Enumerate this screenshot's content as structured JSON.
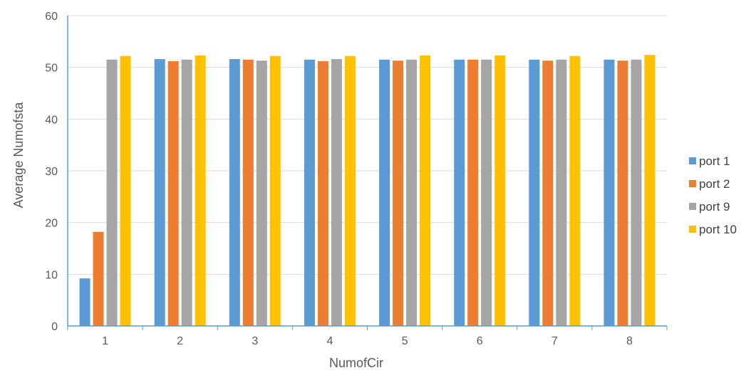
{
  "chart_data": {
    "type": "bar",
    "title": "",
    "xlabel": "NumofCir",
    "ylabel": "Average Numofsta",
    "ylim": [
      0,
      60
    ],
    "yticks": [
      0,
      10,
      20,
      30,
      40,
      50,
      60
    ],
    "grid": true,
    "legend_position": "right",
    "categories": [
      "1",
      "2",
      "3",
      "4",
      "5",
      "6",
      "7",
      "8"
    ],
    "series": [
      {
        "name": "port 1",
        "color": "#5B9BD5",
        "values": [
          9.2,
          51.6,
          51.6,
          51.5,
          51.5,
          51.5,
          51.5,
          51.5
        ]
      },
      {
        "name": "port 2",
        "color": "#ED7D31",
        "values": [
          18.2,
          51.2,
          51.5,
          51.2,
          51.3,
          51.5,
          51.3,
          51.3
        ]
      },
      {
        "name": "port 9",
        "color": "#A5A5A5",
        "values": [
          51.5,
          51.5,
          51.3,
          51.6,
          51.5,
          51.5,
          51.5,
          51.5
        ]
      },
      {
        "name": "port 10",
        "color": "#FFC000",
        "values": [
          52.2,
          52.3,
          52.2,
          52.2,
          52.3,
          52.3,
          52.2,
          52.4
        ]
      }
    ]
  }
}
